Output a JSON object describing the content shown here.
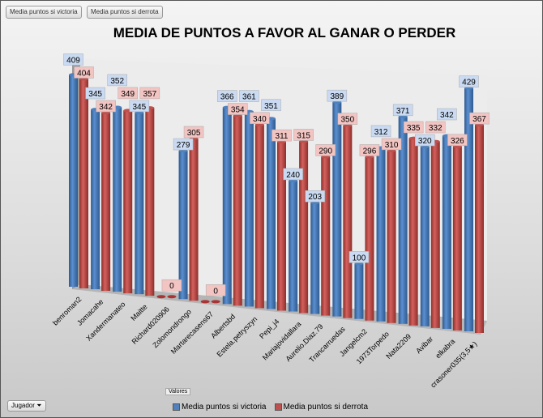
{
  "filters": {
    "victoria": "Media puntos si victoria",
    "derrota": "Media puntos si derrota",
    "valores": "Valores",
    "jugador": "Jugador"
  },
  "colors": {
    "victoria": "#4f81bd",
    "derrota": "#c0504d"
  },
  "chart_data": {
    "type": "bar",
    "title": "MEDIA DE PUNTOS A FAVOR AL GANAR O PERDER",
    "categories": [
      "benroman2",
      "Jomacahe",
      "Xandermanateo",
      "Maitte",
      "Richard020906",
      "Zolomondrongo",
      "Martarecasens67",
      "Albertsbd",
      "Estela.petryszyn",
      "Pepi_j4",
      "Mariajovidallara",
      "Aurelio.Diaz.79",
      "Trancarruedas",
      "Jangelcm2",
      "1973Torpedo",
      "Nata2209",
      "Avibar",
      "elkabra",
      "crasoner035(3,5★)"
    ],
    "series": [
      {
        "name": "Media puntos si victoria",
        "values": [
          409,
          345,
          352,
          345,
          0,
          279,
          0,
          366,
          361,
          351,
          240,
          203,
          389,
          100,
          312,
          371,
          320,
          342,
          429
        ]
      },
      {
        "name": "Media puntos si derrota",
        "values": [
          404,
          342,
          349,
          357,
          0,
          305,
          0,
          354,
          340,
          311,
          315,
          290,
          350,
          296,
          310,
          335,
          332,
          326,
          367
        ]
      }
    ],
    "legend": "bottom"
  }
}
